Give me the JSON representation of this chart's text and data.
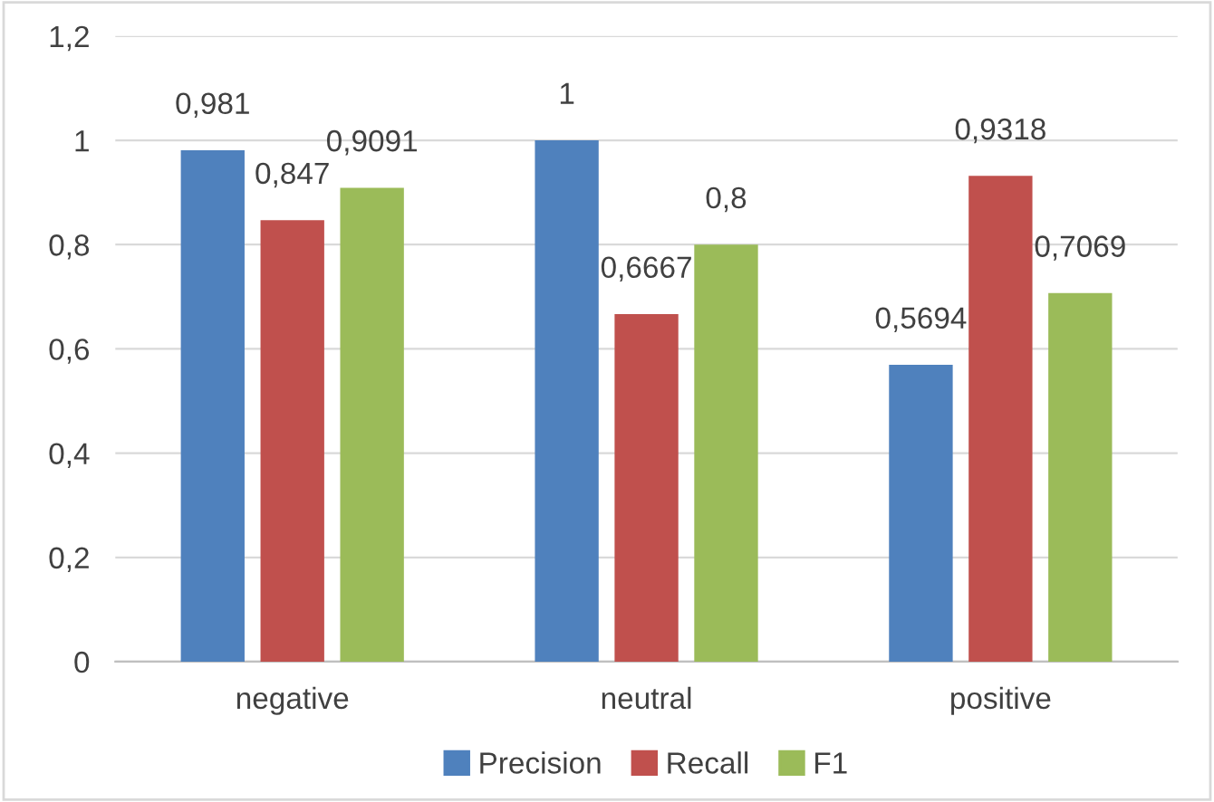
{
  "chart_data": {
    "type": "bar",
    "categories": [
      "negative",
      "neutral",
      "positive"
    ],
    "series": [
      {
        "name": "Precision",
        "color": "#4f81bd",
        "values": [
          0.981,
          1,
          0.5694
        ],
        "value_labels": [
          "0,981",
          "1",
          "0,5694"
        ]
      },
      {
        "name": "Recall",
        "color": "#c0504d",
        "values": [
          0.847,
          0.6667,
          0.9318
        ],
        "value_labels": [
          "0,847",
          "0,6667",
          "0,9318"
        ]
      },
      {
        "name": "F1",
        "color": "#9bbb59",
        "values": [
          0.9091,
          0.8,
          0.7069
        ],
        "value_labels": [
          "0,9091",
          "0,8",
          "0,7069"
        ]
      }
    ],
    "ylim": [
      0,
      1.2
    ],
    "yticks": [
      0,
      {
        "value": 0.2,
        "label": "0,2"
      },
      {
        "value": 0.4,
        "label": "0,4"
      },
      {
        "value": 0.6,
        "label": "0,6"
      },
      {
        "value": 0.8,
        "label": "0,8"
      },
      1,
      {
        "value": 1.2,
        "label": "1,2"
      }
    ],
    "grid": "y",
    "legend": "bottom"
  }
}
